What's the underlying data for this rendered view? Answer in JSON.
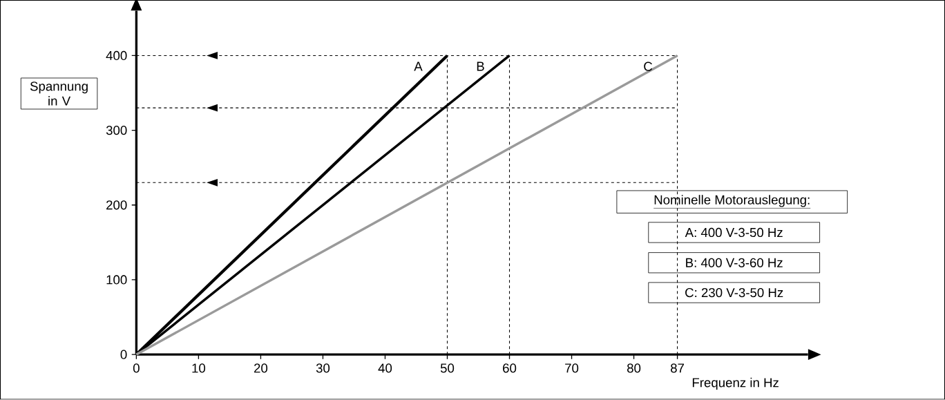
{
  "chart_data": {
    "type": "line",
    "xlabel": "Frequenz in Hz",
    "ylabel": "Spannung in V",
    "xlim": [
      0,
      108
    ],
    "ylim": [
      0,
      460
    ],
    "xticks": [
      0,
      10,
      20,
      30,
      40,
      50,
      60,
      70,
      80,
      87
    ],
    "yticks": [
      0,
      100,
      200,
      300,
      400
    ],
    "series": [
      {
        "name": "A",
        "color": "#000000",
        "x": [
          0,
          50
        ],
        "values": [
          0,
          400
        ]
      },
      {
        "name": "B",
        "color": "#000000",
        "x": [
          0,
          60
        ],
        "values": [
          0,
          400
        ]
      },
      {
        "name": "C",
        "color": "#9a9a9a",
        "x": [
          0,
          87
        ],
        "values": [
          0,
          400
        ]
      }
    ],
    "ref_lines": [
      {
        "axis": "y",
        "value": 400,
        "line_style": "dashed"
      },
      {
        "axis": "y",
        "value": 330,
        "line_style": "dashed"
      },
      {
        "axis": "y",
        "value": 230,
        "line_style": "dashed"
      },
      {
        "axis": "x",
        "value": 50,
        "line_style": "dashed"
      },
      {
        "axis": "x",
        "value": 60,
        "line_style": "dashed"
      },
      {
        "axis": "x",
        "value": 87,
        "line_style": "dashed"
      }
    ],
    "annotations": [
      "Nominelle Motorauslegung:",
      "A: 400 V-3-50 Hz",
      "B: 400 V-3-60 Hz",
      "C: 230 V-3-50 Hz"
    ],
    "grid": false,
    "marker": "none",
    "line_style": "solid"
  }
}
